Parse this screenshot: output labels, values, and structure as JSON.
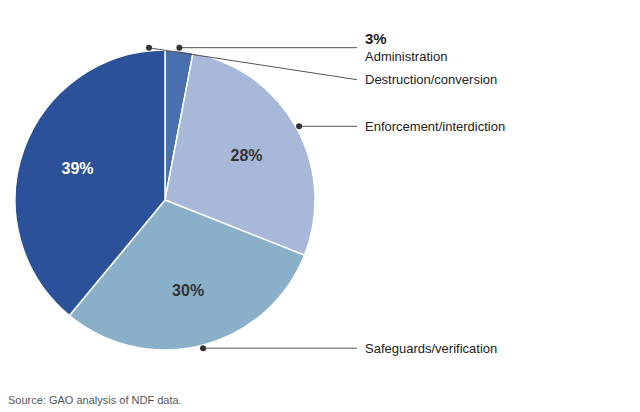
{
  "chart_data": {
    "type": "pie",
    "categories": [
      "Administration",
      "Enforcement/interdiction",
      "Safeguards/verification",
      "Destruction/conversion"
    ],
    "values": [
      3,
      28,
      30,
      39
    ],
    "value_labels": [
      "3%",
      "28%",
      "30%",
      "39%"
    ],
    "colors": [
      "#4A6FAF",
      "#A8B8D8",
      "#8AAFC8",
      "#2B5299"
    ],
    "data_labels": true,
    "annotations": [
      "Source: GAO analysis of NDF data."
    ]
  }
}
